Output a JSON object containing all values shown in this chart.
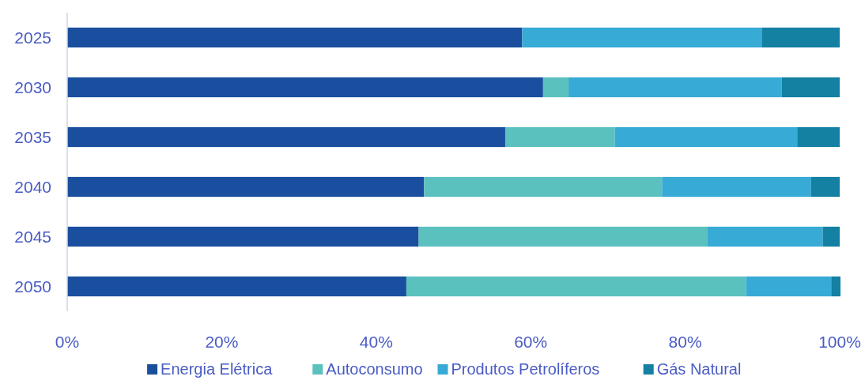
{
  "chart_data": {
    "type": "bar",
    "orientation": "horizontal",
    "stacked": true,
    "categories": [
      "2025",
      "2030",
      "2035",
      "2040",
      "2045",
      "2050"
    ],
    "series": [
      {
        "name": "Energia Elétrica",
        "color": "#1a4f9f",
        "values": [
          58.9,
          61.6,
          56.7,
          46.2,
          45.5,
          43.9
        ]
      },
      {
        "name": "Autoconsumo",
        "color": "#5bc1bf",
        "values": [
          0,
          3.3,
          14.2,
          30.8,
          37.4,
          44.0
        ]
      },
      {
        "name": "Produtos Petrolíferos",
        "color": "#38aad6",
        "values": [
          31.0,
          27.6,
          23.6,
          19.3,
          14.9,
          11.0
        ]
      },
      {
        "name": "Gás Natural",
        "color": "#1480a2",
        "values": [
          10.1,
          7.5,
          5.5,
          3.7,
          2.2,
          1.2
        ]
      }
    ],
    "xlim": [
      0,
      100
    ],
    "xticks": [
      {
        "value": 0,
        "label": "0%"
      },
      {
        "value": 20,
        "label": "20%"
      },
      {
        "value": 40,
        "label": "40%"
      },
      {
        "value": 60,
        "label": "60%"
      },
      {
        "value": 80,
        "label": "80%"
      },
      {
        "value": 100,
        "label": "100%"
      }
    ],
    "grid": false,
    "legend": "bottom"
  }
}
